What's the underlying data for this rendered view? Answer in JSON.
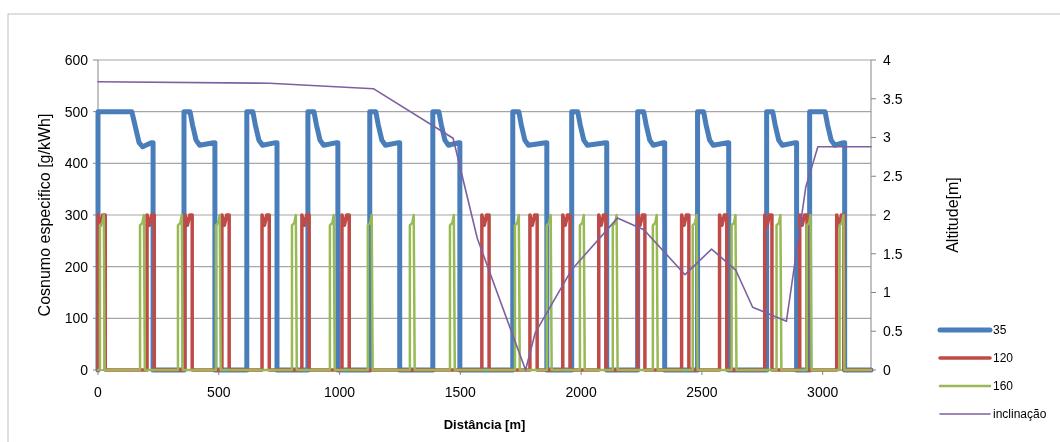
{
  "chart_data": {
    "type": "line",
    "xlabel": "Distância [m]",
    "ylabel": "Cosnumo especifico [g/kWh]",
    "y2label": "Altitude[m]",
    "xlim": [
      0,
      3200
    ],
    "xticks": [
      0,
      500,
      1000,
      1500,
      2000,
      2500,
      3000
    ],
    "ylim": [
      0,
      600
    ],
    "yticks": [
      0,
      100,
      200,
      300,
      400,
      500,
      600
    ],
    "y2lim": [
      0,
      4
    ],
    "y2ticks": [
      0,
      0.5,
      1,
      1.5,
      2,
      2.5,
      3,
      3.5,
      4
    ],
    "grid": "y",
    "legend": "right",
    "marker": "none",
    "line_style": "solid",
    "series": [
      {
        "name": "35",
        "color": "#4a7ebb",
        "x": [
          0,
          0,
          140,
          155,
          170,
          185,
          220,
          228,
          228,
          356,
          356,
          381,
          391,
          406,
          421,
          479,
          484,
          484,
          616,
          616,
          641,
          651,
          666,
          681,
          736,
          741,
          741,
          869,
          869,
          894,
          904,
          919,
          934,
          988,
          993,
          993,
          1125,
          1125,
          1150,
          1160,
          1175,
          1190,
          1244,
          1249,
          1249,
          1386,
          1386,
          1411,
          1421,
          1436,
          1451,
          1493,
          1498,
          1498,
          1717,
          1717,
          1742,
          1752,
          1767,
          1782,
          1853,
          1858,
          1858,
          1961,
          1961,
          1986,
          1996,
          2011,
          2026,
          2101,
          2106,
          2106,
          2234,
          2234,
          2259,
          2269,
          2284,
          2299,
          2341,
          2346,
          2346,
          2482,
          2482,
          2507,
          2517,
          2532,
          2547,
          2606,
          2611,
          2611,
          2768,
          2768,
          2793,
          2803,
          2818,
          2833,
          2887,
          2892,
          2892,
          2946,
          2946,
          3010,
          3020,
          3035,
          3050,
          3086,
          3091,
          3091,
          3200
        ],
        "values": [
          0,
          500,
          500,
          470,
          440,
          432,
          440,
          440,
          0,
          0,
          500,
          500,
          475,
          445,
          435,
          440,
          440,
          0,
          0,
          500,
          500,
          475,
          445,
          435,
          440,
          440,
          0,
          0,
          500,
          500,
          475,
          445,
          435,
          440,
          440,
          0,
          0,
          500,
          500,
          475,
          445,
          435,
          440,
          440,
          0,
          0,
          500,
          500,
          475,
          445,
          435,
          440,
          440,
          0,
          0,
          500,
          500,
          475,
          445,
          435,
          440,
          440,
          0,
          0,
          500,
          500,
          475,
          445,
          435,
          440,
          440,
          0,
          0,
          500,
          500,
          475,
          445,
          435,
          440,
          440,
          0,
          0,
          500,
          500,
          475,
          445,
          435,
          440,
          440,
          0,
          0,
          500,
          500,
          475,
          445,
          435,
          440,
          440,
          0,
          0,
          500,
          500,
          475,
          445,
          435,
          440,
          440,
          0,
          0
        ]
      },
      {
        "name": "120",
        "color": "#be4b48",
        "x": [
          0,
          0,
          10,
          20,
          30,
          30,
          203,
          203,
          213,
          223,
          233,
          233,
          360,
          360,
          370,
          380,
          390,
          390,
          513,
          513,
          523,
          533,
          543,
          543,
          679,
          679,
          689,
          699,
          709,
          709,
          844,
          844,
          854,
          864,
          874,
          874,
          1010,
          1010,
          1020,
          1030,
          1040,
          1040,
          1589,
          1589,
          1599,
          1609,
          1619,
          1619,
          1788,
          1788,
          1798,
          1808,
          1818,
          1818,
          1924,
          1924,
          1934,
          1944,
          1954,
          1954,
          2073,
          2073,
          2083,
          2093,
          2103,
          2103,
          2234,
          2234,
          2244,
          2254,
          2264,
          2264,
          2416,
          2416,
          2426,
          2436,
          2446,
          2446,
          2573,
          2573,
          2583,
          2593,
          2603,
          2603,
          2760,
          2760,
          2770,
          2780,
          2790,
          2790,
          2905,
          2905,
          2915,
          2925,
          2935,
          2935,
          3058,
          3058,
          3068,
          3078,
          3088,
          3088,
          3200
        ],
        "values": [
          0,
          300,
          280,
          300,
          300,
          0,
          0,
          300,
          280,
          300,
          300,
          0,
          0,
          300,
          280,
          300,
          300,
          0,
          0,
          300,
          280,
          300,
          300,
          0,
          0,
          300,
          280,
          300,
          300,
          0,
          0,
          300,
          280,
          300,
          300,
          0,
          0,
          300,
          280,
          300,
          300,
          0,
          0,
          300,
          280,
          300,
          300,
          0,
          0,
          300,
          280,
          300,
          300,
          0,
          0,
          300,
          280,
          300,
          300,
          0,
          0,
          300,
          280,
          300,
          300,
          0,
          0,
          300,
          280,
          300,
          300,
          0,
          0,
          300,
          280,
          300,
          300,
          0,
          0,
          300,
          280,
          300,
          300,
          0,
          0,
          300,
          280,
          300,
          300,
          0,
          0,
          300,
          280,
          300,
          300,
          0,
          0,
          300,
          280,
          300,
          300,
          0,
          0
        ]
      },
      {
        "name": "160",
        "color": "#98b954",
        "x": [
          0,
          8,
          8,
          18,
          24,
          28,
          174,
          174,
          184,
          190,
          194,
          331,
          331,
          341,
          347,
          351,
          488,
          488,
          498,
          504,
          508,
          803,
          803,
          813,
          819,
          823,
          960,
          960,
          970,
          976,
          980,
          1117,
          1117,
          1127,
          1133,
          1137,
          1291,
          1291,
          1301,
          1307,
          1311,
          1457,
          1457,
          1467,
          1473,
          1477,
          1726,
          1726,
          1736,
          1742,
          1746,
          1858,
          1858,
          1868,
          1874,
          1878,
          1995,
          1995,
          2005,
          2011,
          2015,
          2131,
          2131,
          2141,
          2147,
          2151,
          2297,
          2297,
          2307,
          2313,
          2317,
          2462,
          2462,
          2472,
          2478,
          2482,
          2623,
          2623,
          2633,
          2639,
          2643,
          2809,
          2809,
          2819,
          2825,
          2829,
          2934,
          2934,
          2944,
          2950,
          2954,
          3070,
          3070,
          3080,
          3086,
          3090,
          3200
        ],
        "values": [
          0,
          0,
          280,
          285,
          300,
          0,
          0,
          280,
          285,
          300,
          0,
          0,
          280,
          285,
          300,
          0,
          0,
          280,
          285,
          300,
          0,
          0,
          280,
          285,
          300,
          0,
          0,
          280,
          285,
          300,
          0,
          0,
          280,
          285,
          300,
          0,
          0,
          280,
          285,
          300,
          0,
          0,
          280,
          285,
          300,
          0,
          0,
          280,
          285,
          300,
          0,
          0,
          280,
          285,
          300,
          0,
          0,
          280,
          285,
          300,
          0,
          0,
          280,
          285,
          300,
          0,
          0,
          280,
          285,
          300,
          0,
          0,
          280,
          285,
          300,
          0,
          0,
          280,
          285,
          300,
          0,
          0,
          280,
          285,
          300,
          0,
          0,
          280,
          285,
          300,
          0,
          0,
          280,
          285,
          300,
          0,
          0
        ]
      },
      {
        "name": "inclinação",
        "color": "#7d60a0",
        "axis": "y2",
        "x": [
          0,
          710,
          1140,
          1470,
          1570,
          1770,
          1810,
          1960,
          2150,
          2260,
          2430,
          2540,
          2640,
          2710,
          2850,
          2930,
          2980,
          3200
        ],
        "values": [
          3.72,
          3.7,
          3.63,
          2.99,
          1.7,
          0,
          0.48,
          1.29,
          1.96,
          1.81,
          1.23,
          1.56,
          1.29,
          0.81,
          0.63,
          2.36,
          2.88,
          2.88
        ]
      }
    ]
  }
}
